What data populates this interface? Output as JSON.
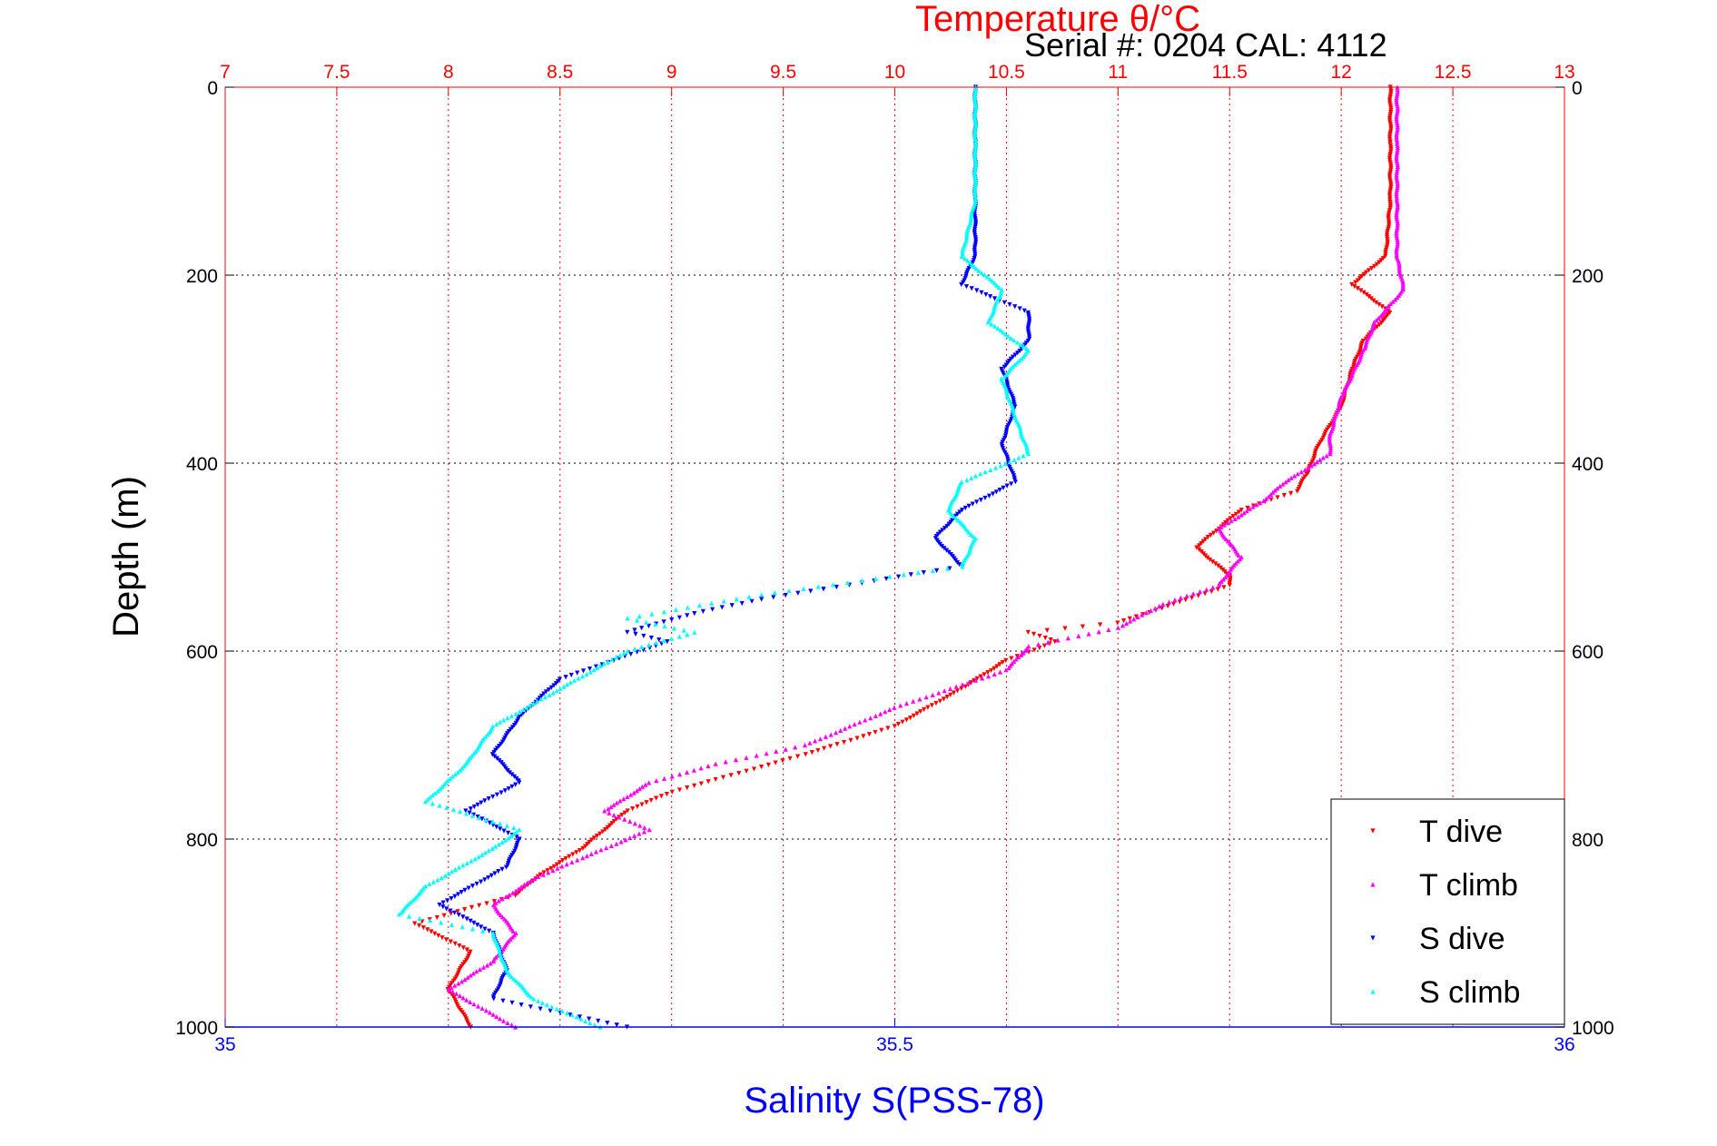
{
  "chart_data": {
    "type": "scatter",
    "title": "Temperature θ/°C",
    "subtitle": "Serial #: 0204  CAL: 4112",
    "xlabel": "Salinity S(PSS-78)",
    "ylabel": "Depth (m)",
    "top_axis": {
      "label": "Temperature θ/°C",
      "lim": [
        7,
        13
      ],
      "ticks": [
        "7",
        "7.5",
        "8",
        "8.5",
        "9",
        "9.5",
        "10",
        "10.5",
        "11",
        "11.5",
        "12",
        "12.5",
        "13"
      ],
      "color": "#ff0000"
    },
    "bottom_axis": {
      "label": "Salinity S(PSS-78)",
      "lim": [
        35,
        36
      ],
      "ticks": [
        "35",
        "35.5",
        "36"
      ],
      "color": "#0000ff"
    },
    "y_axis": {
      "lim": [
        0,
        1000
      ],
      "reversed": true,
      "ticks": [
        "0",
        "200",
        "400",
        "600",
        "800",
        "1000"
      ]
    },
    "grid": true,
    "legend_position": "bottom-right",
    "series": [
      {
        "name": "T dive",
        "axis": "temperature",
        "color": "#ff0000",
        "points": [
          [
            12.22,
            0
          ],
          [
            12.22,
            60
          ],
          [
            12.22,
            120
          ],
          [
            12.2,
            180
          ],
          [
            12.05,
            210
          ],
          [
            12.22,
            240
          ],
          [
            12.1,
            270
          ],
          [
            12.05,
            300
          ],
          [
            12.0,
            340
          ],
          [
            11.9,
            380
          ],
          [
            11.85,
            410
          ],
          [
            11.8,
            430
          ],
          [
            11.55,
            450
          ],
          [
            11.35,
            490
          ],
          [
            11.5,
            520
          ],
          [
            11.5,
            530
          ],
          [
            11.25,
            550
          ],
          [
            11.0,
            570
          ],
          [
            10.6,
            580
          ],
          [
            10.72,
            590
          ],
          [
            10.5,
            610
          ],
          [
            10.3,
            640
          ],
          [
            10.0,
            680
          ],
          [
            9.6,
            710
          ],
          [
            9.3,
            730
          ],
          [
            9.0,
            750
          ],
          [
            8.8,
            770
          ],
          [
            8.7,
            790
          ],
          [
            8.6,
            810
          ],
          [
            8.4,
            840
          ],
          [
            8.3,
            860
          ],
          [
            7.85,
            890
          ],
          [
            8.1,
            920
          ],
          [
            8.0,
            960
          ],
          [
            8.1,
            1000
          ]
        ]
      },
      {
        "name": "T climb",
        "axis": "temperature",
        "color": "#ff00ff",
        "points": [
          [
            12.25,
            0
          ],
          [
            12.25,
            60
          ],
          [
            12.25,
            120
          ],
          [
            12.25,
            180
          ],
          [
            12.28,
            215
          ],
          [
            12.15,
            250
          ],
          [
            12.1,
            280
          ],
          [
            12.0,
            330
          ],
          [
            11.95,
            370
          ],
          [
            11.95,
            390
          ],
          [
            11.75,
            420
          ],
          [
            11.65,
            440
          ],
          [
            11.45,
            470
          ],
          [
            11.55,
            500
          ],
          [
            11.45,
            530
          ],
          [
            11.2,
            550
          ],
          [
            11.0,
            575
          ],
          [
            10.6,
            595
          ],
          [
            10.5,
            620
          ],
          [
            10.0,
            660
          ],
          [
            9.6,
            700
          ],
          [
            9.2,
            720
          ],
          [
            8.9,
            740
          ],
          [
            8.7,
            770
          ],
          [
            8.9,
            790
          ],
          [
            8.6,
            820
          ],
          [
            8.4,
            840
          ],
          [
            8.2,
            870
          ],
          [
            8.3,
            900
          ],
          [
            8.2,
            930
          ],
          [
            8.0,
            960
          ],
          [
            8.3,
            1000
          ]
        ]
      },
      {
        "name": "S dive",
        "axis": "salinity",
        "color": "#0000ff",
        "points": [
          [
            35.56,
            0
          ],
          [
            35.56,
            60
          ],
          [
            35.56,
            120
          ],
          [
            35.56,
            180
          ],
          [
            35.55,
            210
          ],
          [
            35.6,
            240
          ],
          [
            35.6,
            270
          ],
          [
            35.58,
            300
          ],
          [
            35.59,
            340
          ],
          [
            35.58,
            380
          ],
          [
            35.59,
            420
          ],
          [
            35.55,
            450
          ],
          [
            35.53,
            480
          ],
          [
            35.55,
            510
          ],
          [
            35.4,
            545
          ],
          [
            35.35,
            560
          ],
          [
            35.3,
            580
          ],
          [
            35.33,
            590
          ],
          [
            35.25,
            630
          ],
          [
            35.22,
            670
          ],
          [
            35.2,
            710
          ],
          [
            35.22,
            740
          ],
          [
            35.18,
            770
          ],
          [
            35.22,
            800
          ],
          [
            35.21,
            830
          ],
          [
            35.16,
            870
          ],
          [
            35.2,
            900
          ],
          [
            35.21,
            940
          ],
          [
            35.2,
            970
          ],
          [
            35.3,
            1000
          ]
        ]
      },
      {
        "name": "S climb",
        "axis": "salinity",
        "color": "#00ffff",
        "points": [
          [
            35.56,
            0
          ],
          [
            35.56,
            60
          ],
          [
            35.56,
            120
          ],
          [
            35.55,
            180
          ],
          [
            35.58,
            215
          ],
          [
            35.57,
            250
          ],
          [
            35.6,
            280
          ],
          [
            35.58,
            310
          ],
          [
            35.59,
            350
          ],
          [
            35.6,
            390
          ],
          [
            35.55,
            420
          ],
          [
            35.54,
            450
          ],
          [
            35.56,
            480
          ],
          [
            35.55,
            510
          ],
          [
            35.4,
            540
          ],
          [
            35.3,
            565
          ],
          [
            35.35,
            580
          ],
          [
            35.3,
            600
          ],
          [
            35.25,
            640
          ],
          [
            35.2,
            680
          ],
          [
            35.18,
            720
          ],
          [
            35.15,
            760
          ],
          [
            35.22,
            790
          ],
          [
            35.2,
            810
          ],
          [
            35.15,
            850
          ],
          [
            35.13,
            880
          ],
          [
            35.2,
            900
          ],
          [
            35.21,
            940
          ],
          [
            35.23,
            970
          ],
          [
            35.28,
            1000
          ]
        ]
      }
    ]
  }
}
